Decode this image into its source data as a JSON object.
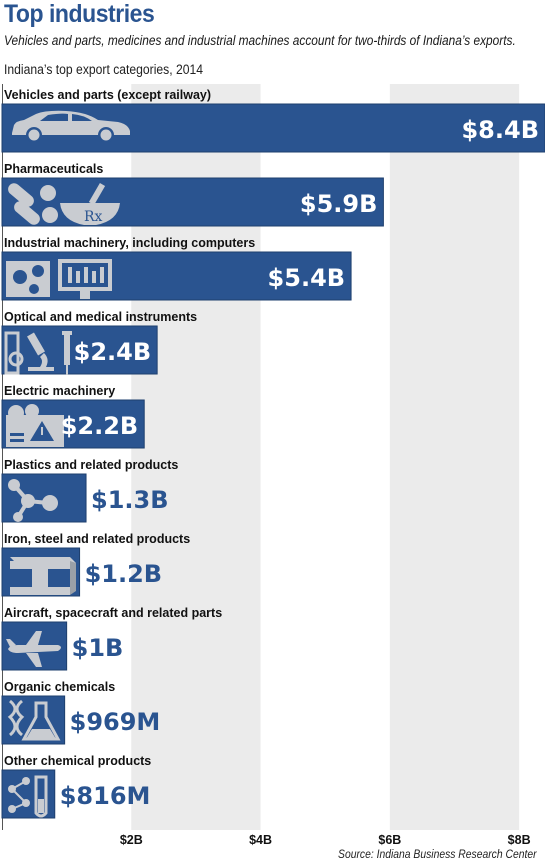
{
  "header": {
    "title": "Top industries",
    "subtitle": "Vehicles and parts, medicines and industrial machines account for two-thirds of Indiana’s exports.",
    "caption": "Indiana’s top export categories, 2014"
  },
  "footer": {
    "source": "Source: Indiana Business Research Center"
  },
  "colors": {
    "bar": "#2a5490",
    "bar_outline": "#1e3f6e",
    "icon": "#c9ccd1",
    "value_inside": "#ffffff",
    "value_outside": "#2a5490",
    "grid_band": "#ebebeb"
  },
  "chart_data": {
    "type": "bar",
    "orientation": "horizontal",
    "title": "Indiana’s top export categories, 2014",
    "categories": [
      "Vehicles and parts (except railway)",
      "Pharmaceuticals",
      "Industrial machinery, including computers",
      "Optical and medical instruments",
      "Electric machinery",
      "Plastics and related products",
      "Iron, steel and related products",
      "Aircraft, spacecraft and related parts",
      "Organic chemicals",
      "Other chemical products"
    ],
    "values": [
      8.4,
      5.9,
      5.4,
      2.4,
      2.2,
      1.3,
      1.2,
      1.0,
      0.969,
      0.816
    ],
    "value_labels": [
      "$8.4B",
      "$5.9B",
      "$5.4B",
      "$2.4B",
      "$2.2B",
      "$1.3B",
      "$1.2B",
      "$1B",
      "$969M",
      "$816M"
    ],
    "icons": [
      "car-icon",
      "pills-icon",
      "gears-monitor-icon",
      "microscope-icon",
      "electric-machine-icon",
      "molecule-icon",
      "steel-beam-icon",
      "airplane-icon",
      "flask-icon",
      "test-tube-icon"
    ],
    "xlim": [
      0,
      8.4
    ],
    "xticks": [
      2,
      4,
      6,
      8
    ],
    "xtick_labels": [
      "$2B",
      "$4B",
      "$6B",
      "$8B"
    ],
    "unit": "billions of dollars",
    "grid": "alternating vertical bands",
    "legend": "none"
  }
}
